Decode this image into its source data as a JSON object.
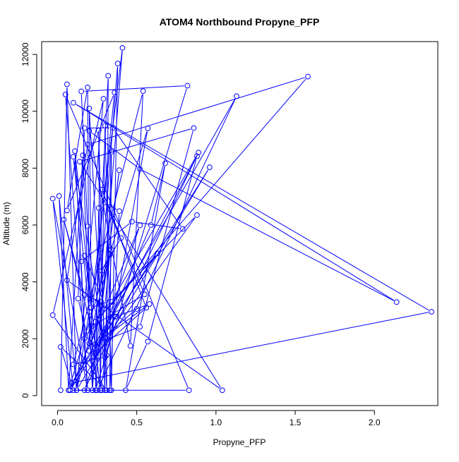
{
  "chart_data": {
    "type": "line",
    "title": "ATOM4 Northbound Propyne_PFP",
    "xlabel": "Propyne_PFP",
    "ylabel": "Altitude (m)",
    "xlim": [
      -0.1,
      2.4
    ],
    "ylim": [
      -350,
      12450
    ],
    "x_ticks": [
      0.0,
      0.5,
      1.0,
      1.5,
      2.0
    ],
    "x_tick_labels": [
      "0.0",
      "0.5",
      "1.0",
      "1.5",
      "2.0"
    ],
    "y_ticks": [
      0,
      2000,
      4000,
      6000,
      8000,
      10000,
      12000
    ],
    "y_tick_labels": [
      "0",
      "2000",
      "4000",
      "6000",
      "8000",
      "10000",
      "12000"
    ],
    "grid": false,
    "series": [
      {
        "color": "#0000ff",
        "marker": "open-circle",
        "points": [
          [
            0.02,
            190
          ],
          [
            0.06,
            10950
          ],
          [
            0.12,
            190
          ],
          [
            0.01,
            7020
          ],
          [
            0.07,
            190
          ],
          [
            0.16,
            8450
          ],
          [
            0.22,
            190
          ],
          [
            0.2,
            10100
          ],
          [
            0.3,
            190
          ],
          [
            0.26,
            9330
          ],
          [
            0.27,
            190
          ],
          [
            0.3,
            9490
          ],
          [
            0.34,
            190
          ],
          [
            0.38,
            11680
          ],
          [
            0.22,
            190
          ],
          [
            0.32,
            11250
          ],
          [
            0.31,
            190
          ],
          [
            0.26,
            6600
          ],
          [
            0.24,
            190
          ],
          [
            0.82,
            10900
          ],
          [
            0.15,
            10700
          ],
          [
            0.19,
            5960
          ],
          [
            0.21,
            3090
          ],
          [
            0.41,
            12230
          ],
          [
            0.24,
            190
          ],
          [
            0.08,
            190
          ],
          [
            0.83,
            190
          ],
          [
            0.05,
            10590
          ],
          [
            0.19,
            190
          ],
          [
            0.11,
            8600
          ],
          [
            0.27,
            190
          ],
          [
            0.57,
            9400
          ],
          [
            0.07,
            190
          ],
          [
            1.13,
            10530
          ],
          [
            0.25,
            190
          ],
          [
            0.1,
            8400
          ],
          [
            0.31,
            1420
          ],
          [
            0.34,
            5130
          ],
          [
            0.12,
            190
          ],
          [
            0.96,
            8030
          ],
          [
            0.08,
            190
          ],
          [
            0.52,
            5990
          ],
          [
            0.17,
            190
          ],
          [
            0.89,
            8550
          ],
          [
            0.34,
            3300
          ],
          [
            0.88,
            6350
          ],
          [
            0.22,
            1220
          ],
          [
            0.59,
            6000
          ],
          [
            0.68,
            8170
          ],
          [
            0.43,
            190
          ],
          [
            0.57,
            1900
          ],
          [
            0.88,
            8420
          ],
          [
            0.26,
            1870
          ],
          [
            0.52,
            2420
          ],
          [
            0.86,
            9410
          ],
          [
            0.14,
            8230
          ],
          [
            1.04,
            190
          ],
          [
            0.06,
            4060
          ],
          [
            0.19,
            8830
          ],
          [
            1.58,
            11220
          ],
          [
            0.24,
            2600
          ],
          [
            0.63,
            5000
          ],
          [
            0.09,
            450
          ],
          [
            2.36,
            2950
          ],
          [
            0.1,
            10300
          ],
          [
            2.14,
            3290
          ],
          [
            0.52,
            7970
          ],
          [
            0.2,
            9310
          ],
          [
            0.46,
            1750
          ],
          [
            0.54,
            10710
          ],
          [
            0.1,
            1100
          ],
          [
            0.3,
            1360
          ],
          [
            0.34,
            8570
          ],
          [
            0.33,
            190
          ],
          [
            0.39,
            6490
          ],
          [
            0.3,
            6790
          ],
          [
            0.55,
            3560
          ],
          [
            0.22,
            2440
          ],
          [
            0.17,
            2010
          ],
          [
            0.15,
            4720
          ],
          [
            0.47,
            6120
          ],
          [
            0.79,
            5860
          ],
          [
            0.35,
            9420
          ],
          [
            0.17,
            9410
          ],
          [
            0.13,
            3410
          ],
          [
            0.2,
            1840
          ],
          [
            0.36,
            10660
          ],
          [
            0.06,
            6510
          ],
          [
            0.19,
            10840
          ],
          [
            0.2,
            1570
          ],
          [
            0.28,
            3180
          ],
          [
            0.39,
            7930
          ],
          [
            0.24,
            1500
          ],
          [
            0.56,
            3090
          ],
          [
            0.28,
            7250
          ],
          [
            0.4,
            5540
          ],
          [
            0.28,
            4390
          ],
          [
            0.33,
            4960
          ],
          [
            0.3,
            3180
          ],
          [
            0.17,
            4920
          ],
          [
            0.21,
            3520
          ],
          [
            0.29,
            2050
          ],
          [
            0.5,
            3050
          ],
          [
            0.37,
            2780
          ],
          [
            0.58,
            3220
          ],
          [
            0.24,
            1820
          ],
          [
            0.04,
            6190
          ],
          [
            0.17,
            3540
          ],
          [
            0.27,
            3300
          ],
          [
            0.2,
            2950
          ],
          [
            0.12,
            190
          ],
          [
            0.29,
            10440
          ],
          [
            -0.03,
            2830
          ],
          [
            0.31,
            190
          ],
          [
            0.02,
            1710
          ],
          [
            0.1,
            190
          ],
          [
            -0.03,
            6930
          ],
          [
            0.19,
            190
          ],
          [
            0.28,
            190
          ],
          [
            0.33,
            190
          ]
        ]
      }
    ]
  }
}
